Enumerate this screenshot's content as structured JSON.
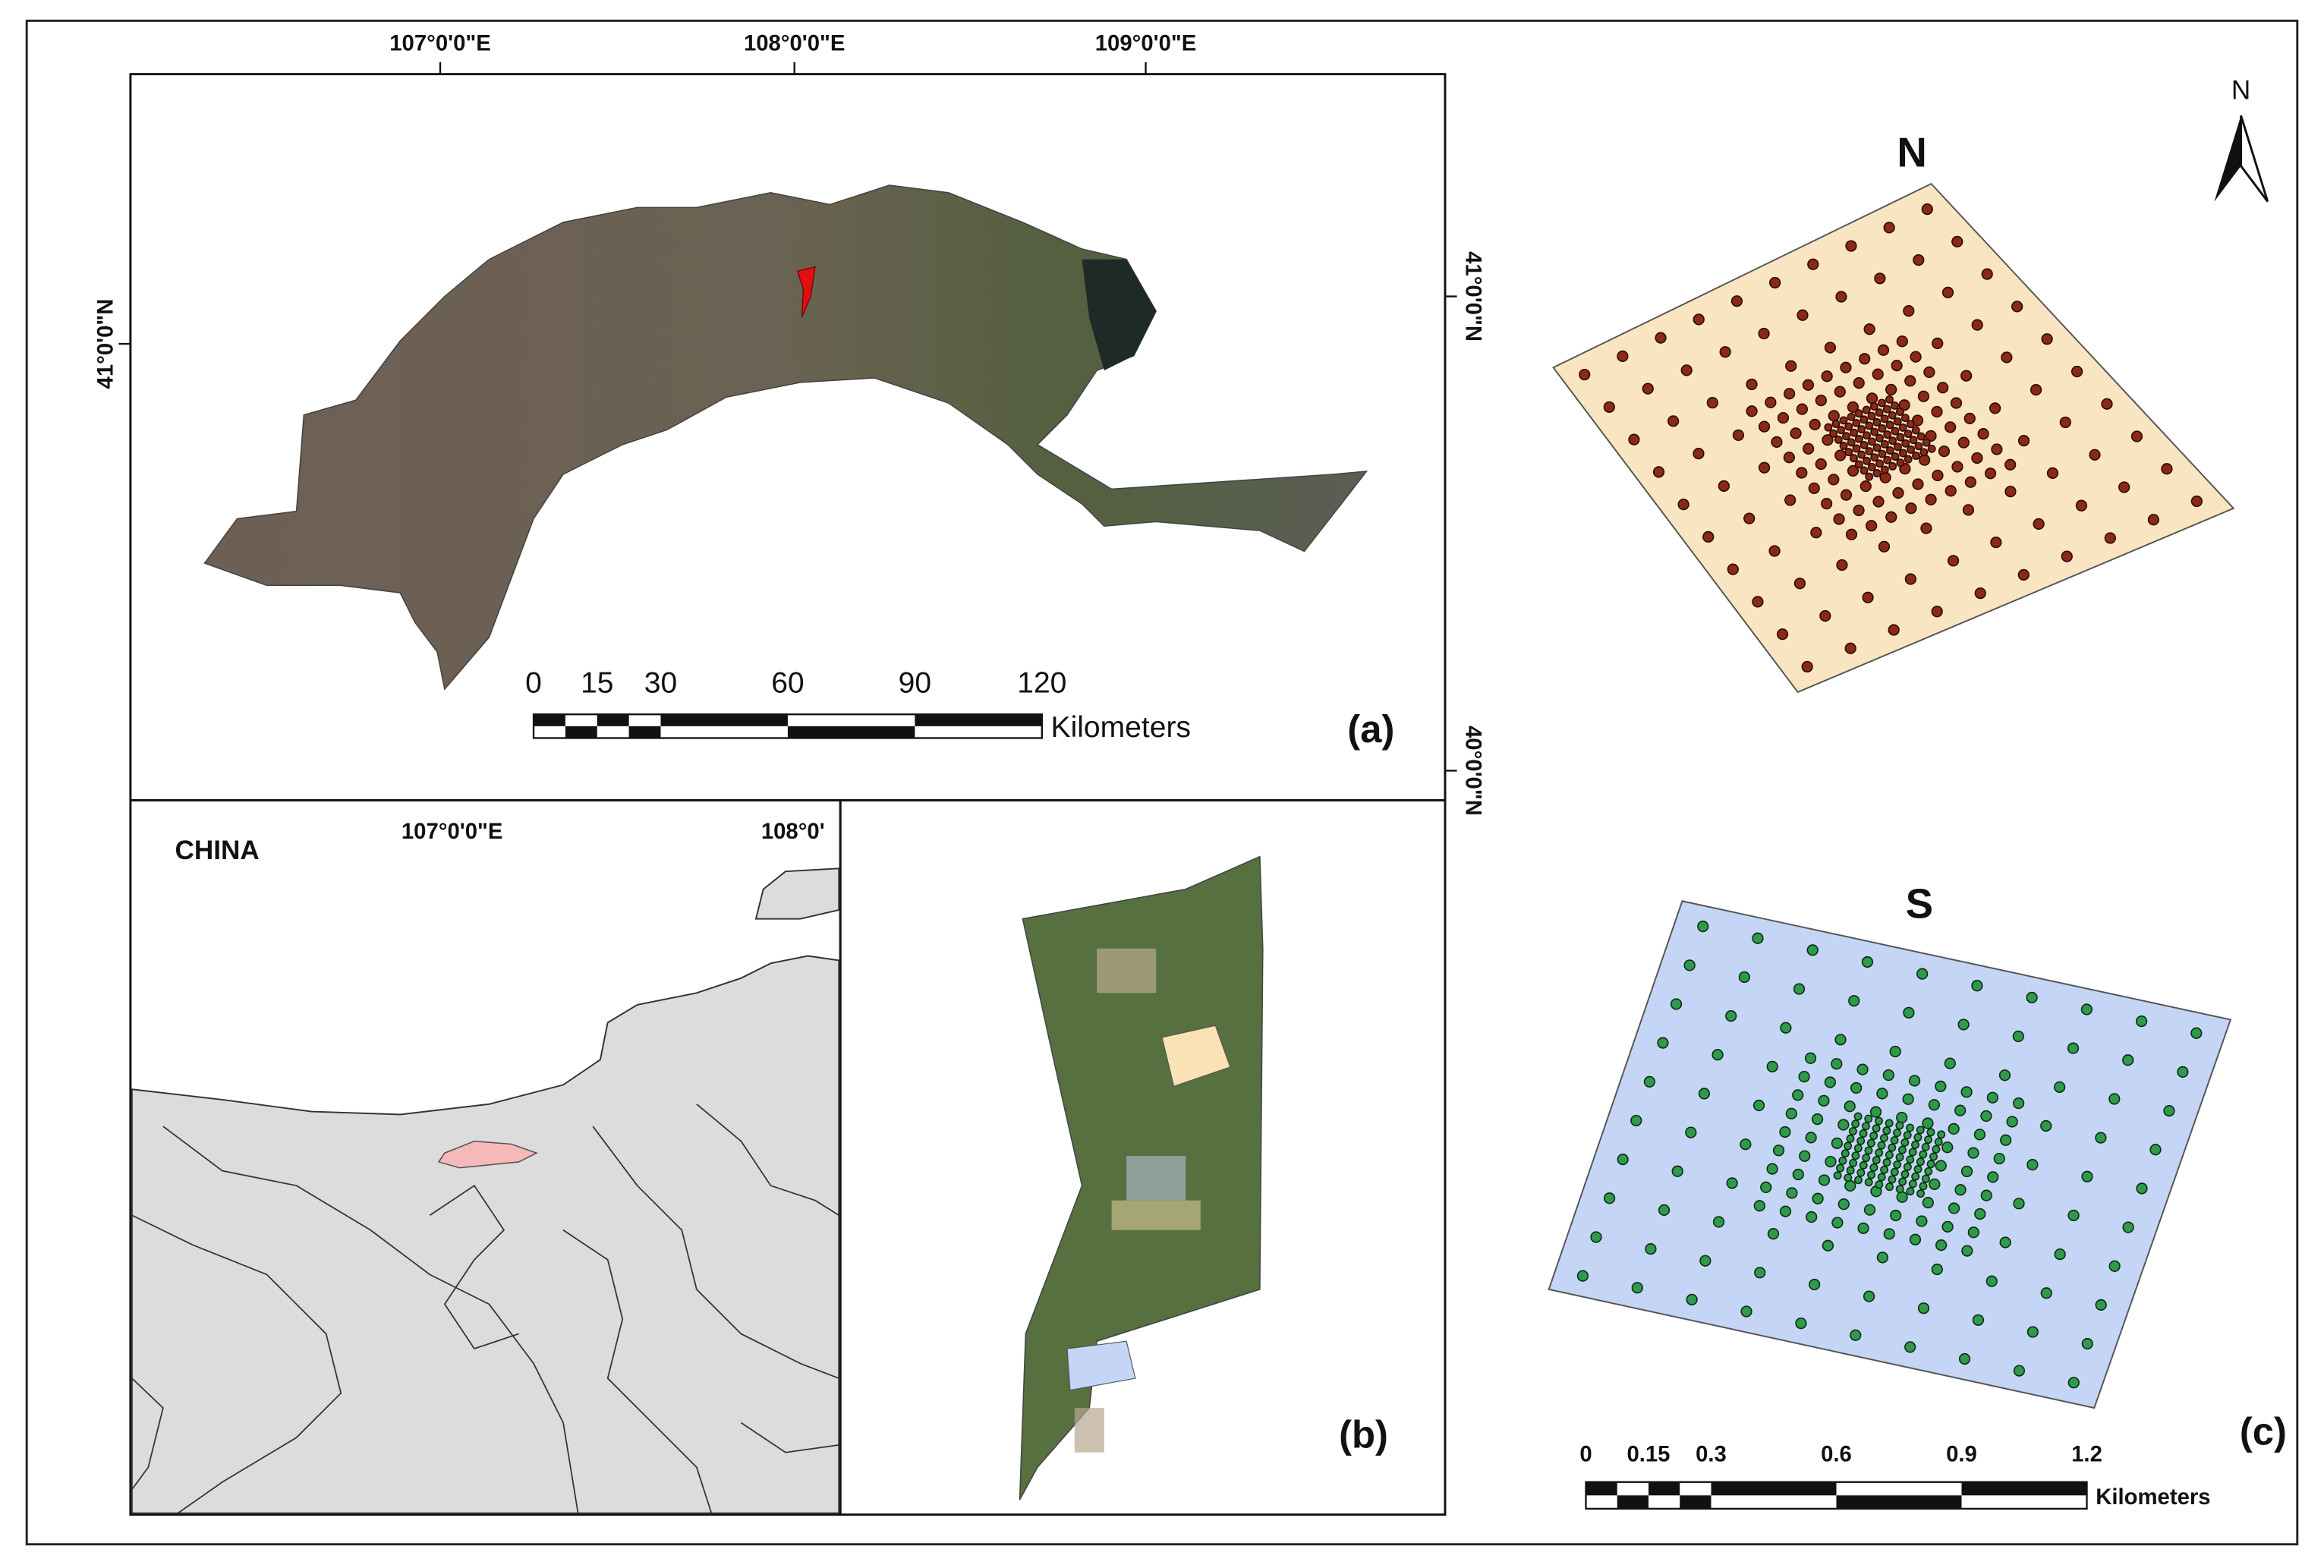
{
  "panel_a": {
    "label": "(a)",
    "top_labels": [
      "107°0'0\"E",
      "108°0'0\"E",
      "109°0'0\"E"
    ],
    "left_label": "41°0'0\"N",
    "right_labels": [
      "41°0'0\"N",
      "40°0'0\"N"
    ],
    "scale_bar": {
      "ticks": [
        0,
        15,
        30,
        60,
        90,
        120
      ],
      "unit": "Kilometers"
    }
  },
  "panel_b": {
    "label": "(b)",
    "country": "CHINA",
    "top_labels": [
      "107°0'0\"E",
      "108°0'"
    ]
  },
  "panel_c": {
    "label": "(c)",
    "north_arrow": "N",
    "north_plot": "N",
    "south_plot": "S",
    "scale_bar": {
      "ticks": [
        0,
        0.15,
        0.3,
        0.6,
        0.9,
        1.2
      ],
      "unit": "Kilometers"
    }
  }
}
